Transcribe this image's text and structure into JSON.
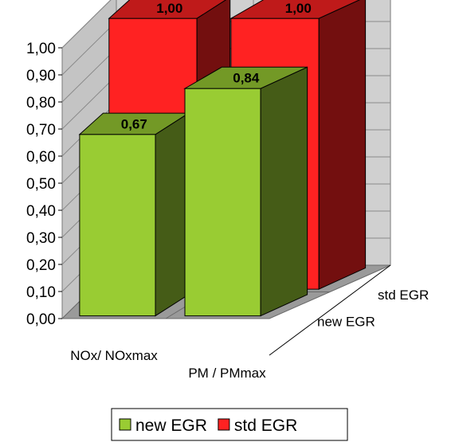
{
  "chart_data": {
    "type": "bar",
    "categories": [
      "NOx/ NOxmax",
      "PM / PMmax"
    ],
    "series": [
      {
        "name": "new EGR",
        "values": [
          0.67,
          0.84
        ],
        "labels": [
          "0,67",
          "0,84"
        ],
        "color": "#99cc33"
      },
      {
        "name": "std EGR",
        "values": [
          1.0,
          1.0
        ],
        "labels": [
          "1,00",
          "1,00"
        ],
        "color": "#ff2222"
      }
    ],
    "ylim": [
      0,
      1
    ],
    "yticks": [
      0.0,
      0.1,
      0.2,
      0.3,
      0.4,
      0.5,
      0.6,
      0.7,
      0.8,
      0.9,
      1.0
    ],
    "ytick_labels": [
      "0,00",
      "0,10",
      "0,20",
      "0,30",
      "0,40",
      "0,50",
      "0,60",
      "0,70",
      "0,80",
      "0,90",
      "1,00"
    ],
    "depth_labels": [
      "new  EGR",
      "std EGR"
    ],
    "grid": true,
    "legend": "bottom",
    "projection": "3d"
  }
}
